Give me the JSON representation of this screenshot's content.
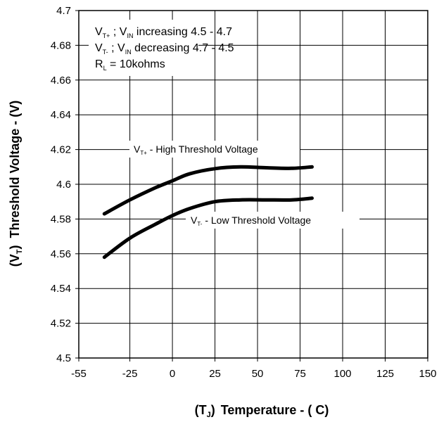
{
  "chart_data": {
    "type": "line",
    "ylabel": {
      "prefix_open": "(V",
      "prefix_sub": "T",
      "prefix_close": ")",
      "text": "Threshold Voltage - (V)"
    },
    "xlabel": {
      "prefix_open": "(T",
      "prefix_sub": "J",
      "prefix_close": ")",
      "text": "Temperature - ( C)"
    },
    "xlim": [
      -55,
      150
    ],
    "ylim": [
      4.5,
      4.7
    ],
    "x_ticks": [
      -55,
      -25,
      0,
      25,
      50,
      75,
      100,
      125,
      150
    ],
    "x_tick_labels": [
      "-55",
      "-25",
      "0",
      "25",
      "50",
      "75",
      "100",
      "125",
      "150"
    ],
    "y_ticks": [
      4.5,
      4.52,
      4.54,
      4.56,
      4.58,
      4.6,
      4.62,
      4.64,
      4.66,
      4.68,
      4.7
    ],
    "y_tick_labels": [
      "4.5",
      "4.52",
      "4.54",
      "4.56",
      "4.58",
      "4.6",
      "4.62",
      "4.64",
      "4.66",
      "4.68",
      "4.7"
    ],
    "grid": true,
    "series": [
      {
        "x": [
          -40,
          -25,
          -10,
          0,
          10,
          25,
          40,
          55,
          70,
          82
        ],
        "y": [
          4.583,
          4.591,
          4.598,
          4.602,
          4.606,
          4.609,
          4.61,
          4.6095,
          4.6092,
          4.61
        ]
      },
      {
        "x": [
          -40,
          -25,
          -10,
          0,
          10,
          25,
          40,
          55,
          70,
          82
        ],
        "y": [
          4.558,
          4.569,
          4.577,
          4.582,
          4.586,
          4.59,
          4.591,
          4.591,
          4.591,
          4.592
        ]
      }
    ],
    "annotations": {
      "legend_line1": {
        "v": "V",
        "sub": "T+",
        "rest1": " ; V",
        "sub2": "IN",
        "rest2": " increasing 4.5 - 4.7"
      },
      "legend_line2": {
        "v": "V",
        "sub": "T-",
        "rest1": " ; V",
        "sub2": "IN",
        "rest2": " decreasing 4.7 - 4.5"
      },
      "legend_line3": {
        "v": "R",
        "sub": "L",
        "rest1": " = 10kohms"
      },
      "high_label": {
        "v": "V",
        "sub": "T+",
        "rest": " - High Threshold Voltage"
      },
      "low_label": {
        "v": "V",
        "sub": "T-",
        "rest": " - Low Threshold Voltage"
      }
    }
  }
}
